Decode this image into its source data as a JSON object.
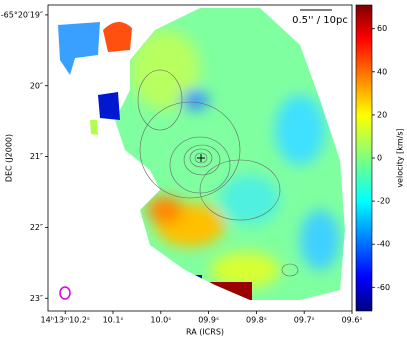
{
  "chart_data": {
    "type": "image",
    "xlabel": "RA (ICRS)",
    "ylabel": "DEC (J2000)",
    "xlim": [
      10.236,
      9.6
    ],
    "xticks": [
      {
        "value": 10.2,
        "label": "14ʰ13ᵐ10.2ˢ"
      },
      {
        "value": 10.1,
        "label": "10.1ˢ"
      },
      {
        "value": 10.0,
        "label": "10.0ˢ"
      },
      {
        "value": 9.9,
        "label": "09.9ˢ"
      },
      {
        "value": 9.8,
        "label": "09.8ˢ"
      },
      {
        "value": 9.7,
        "label": "09.7ˢ"
      },
      {
        "value": 9.6,
        "label": "09.6ˢ"
      }
    ],
    "ylim": [
      23.18,
      18.86
    ],
    "yticks": [
      {
        "value": 19,
        "label": "-65°20′19″"
      },
      {
        "value": 20,
        "label": "20″"
      },
      {
        "value": 21,
        "label": "21″"
      },
      {
        "value": 22,
        "label": "22″"
      },
      {
        "value": 23,
        "label": "23″"
      }
    ],
    "colorbar": {
      "label": "velocity [km/s]",
      "lim": [
        -71,
        71
      ],
      "ticks": [
        60,
        40,
        20,
        0,
        -20,
        -40,
        -60
      ]
    },
    "annotation": "0.5'' / 10pc"
  }
}
